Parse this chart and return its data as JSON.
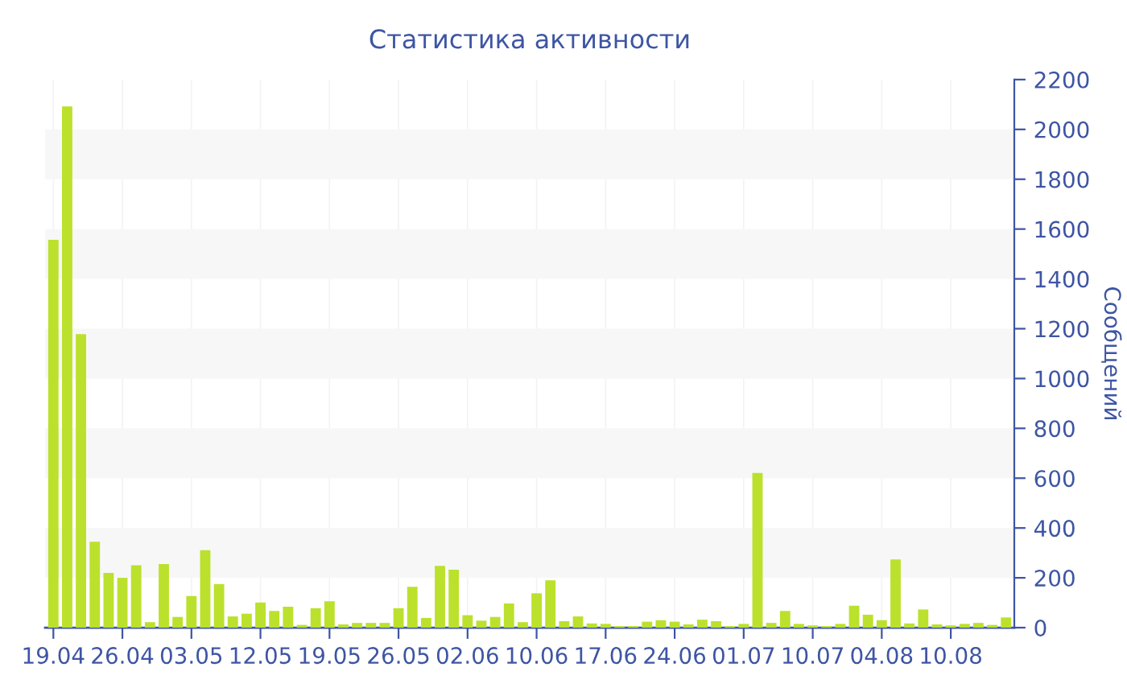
{
  "chart_data": {
    "type": "bar",
    "title": "Статистика активности",
    "y2label": "Сообщений",
    "categories": [
      "19.04",
      null,
      null,
      null,
      null,
      "26.04",
      null,
      null,
      null,
      null,
      "03.05",
      null,
      null,
      null,
      null,
      "12.05",
      null,
      null,
      null,
      null,
      "19.05",
      null,
      null,
      null,
      null,
      "26.05",
      null,
      null,
      null,
      null,
      "02.06",
      null,
      null,
      null,
      null,
      "10.06",
      null,
      null,
      null,
      null,
      "17.06",
      null,
      null,
      null,
      null,
      "24.06",
      null,
      null,
      null,
      null,
      "01.07",
      null,
      null,
      null,
      null,
      "10.07",
      null,
      null,
      null,
      null,
      "04.08",
      null,
      null,
      null,
      null,
      "10.08",
      null,
      null,
      null,
      null
    ],
    "series": [
      {
        "color": "#bbe12d",
        "axis": "y2",
        "values": [
          1557,
          2092,
          1178,
          345,
          220,
          200,
          250,
          22,
          255,
          43,
          127,
          311,
          175,
          45,
          56,
          101,
          67,
          84,
          11,
          78,
          106,
          13,
          19,
          19,
          19,
          78,
          164,
          39,
          248,
          233,
          50,
          28,
          43,
          97,
          22,
          138,
          190,
          26,
          45,
          17,
          15,
          6,
          6,
          24,
          30,
          24,
          13,
          32,
          26,
          6,
          15,
          621,
          19,
          67,
          15,
          9,
          6,
          15,
          88,
          52,
          30,
          274,
          17,
          73,
          13,
          9,
          15,
          19,
          11,
          41
        ]
      }
    ],
    "y2lim": [
      0,
      2200
    ],
    "y2ticks": [
      0,
      200,
      400,
      600,
      800,
      1000,
      1200,
      1400,
      1600,
      1800,
      2000,
      2200
    ],
    "bands": [
      {
        "axis": "y2",
        "from": 200,
        "to": 400,
        "color": "#f7f7f7"
      },
      {
        "axis": "y2",
        "from": 600,
        "to": 800,
        "color": "#f7f7f7"
      },
      {
        "axis": "y2",
        "from": 1000,
        "to": 1200,
        "color": "#f7f7f7"
      },
      {
        "axis": "y2",
        "from": 1400,
        "to": 1600,
        "color": "#f7f7f7"
      },
      {
        "axis": "y2",
        "from": 1800,
        "to": 2000,
        "color": "#f7f7f7"
      }
    ],
    "grid": "x"
  }
}
